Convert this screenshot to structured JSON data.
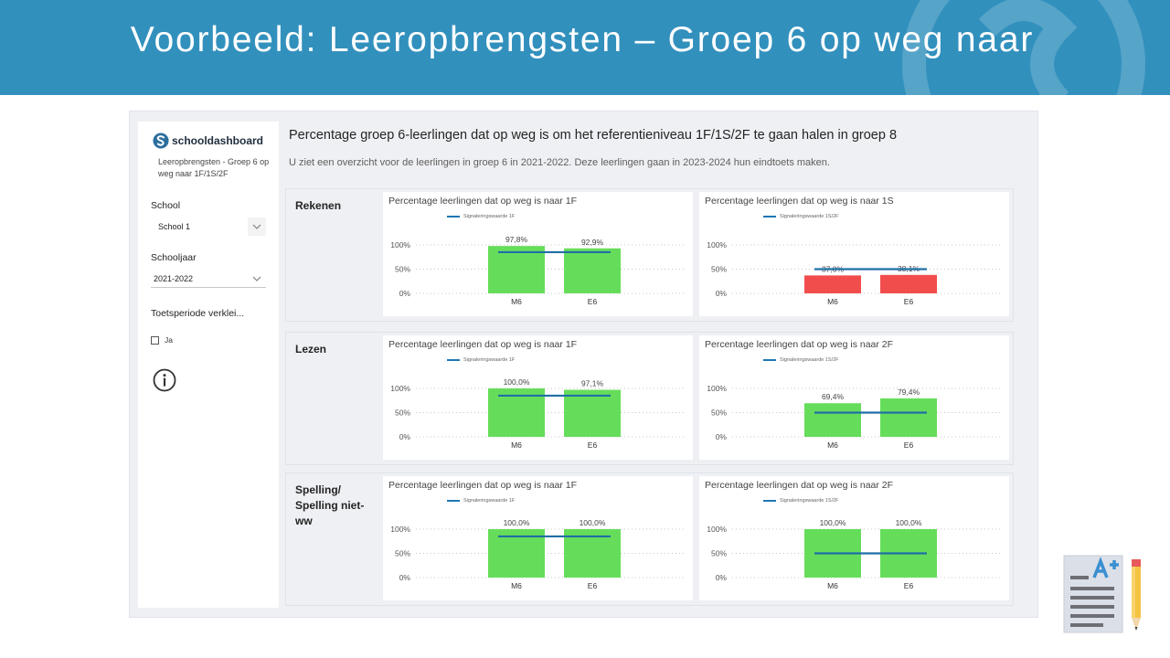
{
  "slide": {
    "title": "Voorbeeld: Leeropbrengsten – Groep 6 op weg naar"
  },
  "sidebar": {
    "brand": "schooldashboard",
    "report_name": "Leeropbrengsten - Groep 6 op weg naar 1F/1S/2F",
    "filters": [
      {
        "label": "School",
        "value": "School 1"
      },
      {
        "label": "Schooljaar",
        "value": "2021-2022"
      }
    ],
    "toggle": {
      "label": "Toetsperiode verklei...",
      "option": "Ja",
      "checked": false
    },
    "info_icon": "info-icon"
  },
  "header": {
    "title": "Percentage groep 6-leerlingen dat op weg is om het referentieniveau 1F/1S/2F te gaan halen in groep 8",
    "subtitle": "U ziet een overzicht voor de leerlingen in groep 6 in 2021-2022. Deze leerlingen gaan in 2023-2024 hun eindtoets maken."
  },
  "colors": {
    "green": "#66dd5a",
    "red": "#f24d4d",
    "signal_line": "#1f6fa6",
    "banner": "#3290bd"
  },
  "sections": [
    {
      "label": "Rekenen",
      "charts": [
        {
          "title": "Percentage leerlingen dat op weg is naar 1F",
          "legend": "Signaleringswaarde 1F"
        },
        {
          "title": "Percentage leerlingen dat op weg is naar 1S",
          "legend": "Signaleringswaarde 1S/2F"
        }
      ]
    },
    {
      "label": "Lezen",
      "charts": [
        {
          "title": "Percentage leerlingen dat op weg is naar 1F",
          "legend": "Signaleringswaarde 1F"
        },
        {
          "title": "Percentage leerlingen dat op weg is naar 2F",
          "legend": "Signaleringswaarde 1S/2F"
        }
      ]
    },
    {
      "label": "Spelling/ Spelling niet-ww",
      "charts": [
        {
          "title": "Percentage leerlingen dat op weg is naar 1F",
          "legend": "Signaleringswaarde 1F"
        },
        {
          "title": "Percentage leerlingen dat op weg is naar 2F",
          "legend": "Signaleringswaarde 1S/2F"
        }
      ]
    }
  ],
  "chart_data": [
    {
      "type": "bar",
      "subject": "Rekenen",
      "title": "Percentage leerlingen dat op weg is naar 1F",
      "categories": [
        "M6",
        "E6"
      ],
      "values": [
        97.8,
        92.9
      ],
      "labels": [
        "97,8%",
        "92,9%"
      ],
      "color": "#66dd5a",
      "signal_value": 85,
      "ylim": [
        0,
        100
      ],
      "yticks": [
        "0%",
        "50%",
        "100%"
      ],
      "legend": "Signaleringswaarde 1F"
    },
    {
      "type": "bar",
      "subject": "Rekenen",
      "title": "Percentage leerlingen dat op weg is naar 1S",
      "categories": [
        "M6",
        "E6"
      ],
      "values": [
        37.0,
        38.1
      ],
      "labels": [
        "37,0%",
        "38,1%"
      ],
      "color": "#f24d4d",
      "signal_value": 50,
      "ylim": [
        0,
        100
      ],
      "yticks": [
        "0%",
        "50%",
        "100%"
      ],
      "legend": "Signaleringswaarde 1S/2F"
    },
    {
      "type": "bar",
      "subject": "Lezen",
      "title": "Percentage leerlingen dat op weg is naar 1F",
      "categories": [
        "M6",
        "E6"
      ],
      "values": [
        100.0,
        97.1
      ],
      "labels": [
        "100,0%",
        "97,1%"
      ],
      "color": "#66dd5a",
      "signal_value": 85,
      "ylim": [
        0,
        100
      ],
      "yticks": [
        "0%",
        "50%",
        "100%"
      ],
      "legend": "Signaleringswaarde 1F"
    },
    {
      "type": "bar",
      "subject": "Lezen",
      "title": "Percentage leerlingen dat op weg is naar 2F",
      "categories": [
        "M6",
        "E6"
      ],
      "values": [
        69.4,
        79.4
      ],
      "labels": [
        "69,4%",
        "79,4%"
      ],
      "color": "#66dd5a",
      "signal_value": 50,
      "ylim": [
        0,
        100
      ],
      "yticks": [
        "0%",
        "50%",
        "100%"
      ],
      "legend": "Signaleringswaarde 1S/2F"
    },
    {
      "type": "bar",
      "subject": "Spelling/ Spelling niet-ww",
      "title": "Percentage leerlingen dat op weg is naar 1F",
      "categories": [
        "M6",
        "E6"
      ],
      "values": [
        100.0,
        100.0
      ],
      "labels": [
        "100,0%",
        "100,0%"
      ],
      "color": "#66dd5a",
      "signal_value": 85,
      "ylim": [
        0,
        100
      ],
      "yticks": [
        "0%",
        "50%",
        "100%"
      ],
      "legend": "Signaleringswaarde 1F"
    },
    {
      "type": "bar",
      "subject": "Spelling/ Spelling niet-ww",
      "title": "Percentage leerlingen dat op weg is naar 2F",
      "categories": [
        "M6",
        "E6"
      ],
      "values": [
        100.0,
        100.0
      ],
      "labels": [
        "100,0%",
        "100,0%"
      ],
      "color": "#66dd5a",
      "signal_value": 50,
      "ylim": [
        0,
        100
      ],
      "yticks": [
        "0%",
        "50%",
        "100%"
      ],
      "legend": "Signaleringswaarde 1S/2F"
    }
  ]
}
